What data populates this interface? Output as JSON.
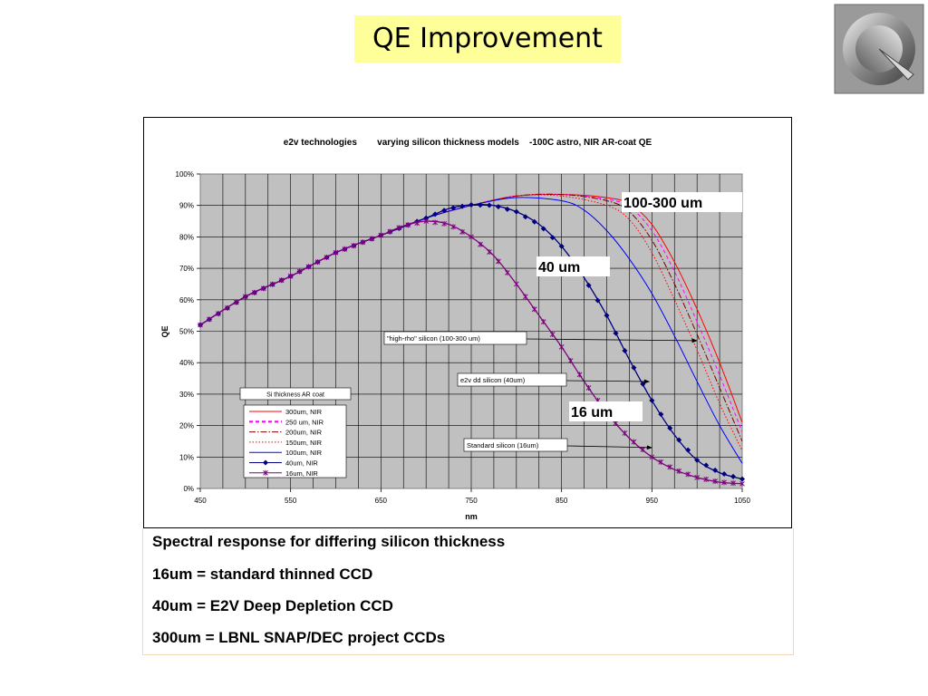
{
  "slide": {
    "title": "QE Improvement",
    "logo_icon": "chrome-circle-logo-icon",
    "notes": [
      "Spectral response for differing silicon thickness",
      "16um = standard thinned CCD",
      "40um = E2V Deep Depletion CCD",
      "300um = LBNL SNAP/DEC project CCDs"
    ]
  },
  "chart_data": {
    "type": "line",
    "title": "e2v technologies        varying silicon thickness models    -100C astro, NIR AR-coat QE",
    "xlabel": "nm",
    "ylabel": "QE",
    "xlim": [
      450,
      1050
    ],
    "ylim": [
      0,
      100
    ],
    "x_ticks": [
      450,
      550,
      650,
      750,
      850,
      950,
      1050
    ],
    "y_ticks": [
      "0%",
      "10%",
      "20%",
      "30%",
      "40%",
      "50%",
      "60%",
      "70%",
      "80%",
      "90%",
      "100%"
    ],
    "grid": true,
    "plot_background": "#c0c0c0",
    "legend": {
      "placement": "lower-left",
      "header": "Si thickness    AR coat",
      "entries": [
        "300um, NIR",
        "250 um, NIR",
        "200um, NIR",
        "150um, NIR",
        "100um, NIR",
        "40um, NIR",
        "16um, NIR"
      ]
    },
    "series": [
      {
        "name": "300um, NIR",
        "color": "#ff0000",
        "style": "solid",
        "x": [
          450,
          500,
          550,
          600,
          650,
          700,
          750,
          800,
          850,
          900,
          925,
          950,
          975,
          1000,
          1025,
          1050
        ],
        "y": [
          52,
          61,
          67.5,
          75,
          80.5,
          86,
          90,
          93,
          93.5,
          92.5,
          90.5,
          84,
          72,
          57,
          40,
          21
        ]
      },
      {
        "name": "250 um, NIR",
        "color": "#ff00ff",
        "style": "dash",
        "x": [
          450,
          500,
          550,
          600,
          650,
          700,
          750,
          800,
          850,
          900,
          925,
          950,
          975,
          1000,
          1025,
          1050
        ],
        "y": [
          52,
          61,
          67.5,
          75,
          80.5,
          86,
          90,
          93,
          93.5,
          92,
          89.5,
          82,
          69,
          53,
          36,
          18
        ]
      },
      {
        "name": "200um, NIR",
        "color": "#800000",
        "style": "dashdot",
        "x": [
          450,
          500,
          550,
          600,
          650,
          700,
          750,
          800,
          850,
          900,
          925,
          950,
          975,
          1000,
          1025,
          1050
        ],
        "y": [
          52,
          61,
          67.5,
          75,
          80.5,
          86,
          90,
          93,
          93.5,
          91.5,
          88,
          79,
          65,
          49,
          32,
          15
        ]
      },
      {
        "name": "150um, NIR",
        "color": "#ff0000",
        "style": "dot",
        "x": [
          450,
          500,
          550,
          600,
          650,
          700,
          750,
          800,
          850,
          900,
          925,
          950,
          975,
          1000,
          1025,
          1050
        ],
        "y": [
          52,
          61,
          67.5,
          75,
          80.5,
          86,
          90,
          93,
          93,
          90,
          85.5,
          75,
          60,
          44,
          27,
          12
        ]
      },
      {
        "name": "100um, NIR",
        "color": "#0000ff",
        "style": "solid",
        "x": [
          450,
          500,
          550,
          600,
          650,
          700,
          750,
          800,
          850,
          875,
          900,
          925,
          950,
          975,
          1000,
          1025,
          1050
        ],
        "y": [
          52,
          61,
          67.5,
          75,
          80.5,
          86,
          90,
          92.5,
          91.5,
          88.5,
          82,
          73,
          62,
          48.5,
          34,
          20,
          8
        ]
      },
      {
        "name": "40um, NIR",
        "color": "#000080",
        "style": "solid",
        "marker": "diamond",
        "x": [
          450,
          500,
          550,
          600,
          650,
          700,
          725,
          750,
          775,
          800,
          825,
          850,
          875,
          900,
          925,
          950,
          975,
          1000,
          1025,
          1050
        ],
        "y": [
          52,
          61,
          67.5,
          75,
          80.5,
          86,
          89,
          90.2,
          90,
          88,
          84,
          77,
          67,
          55,
          41,
          28,
          17,
          9,
          5,
          3
        ]
      },
      {
        "name": "16um, NIR",
        "color": "#800080",
        "style": "solid",
        "marker": "x",
        "x": [
          450,
          500,
          550,
          600,
          650,
          675,
          700,
          725,
          750,
          775,
          800,
          825,
          850,
          875,
          900,
          925,
          950,
          975,
          1000,
          1025,
          1050
        ],
        "y": [
          52,
          61,
          67.5,
          75,
          80.5,
          83.5,
          85,
          84,
          80,
          74,
          65,
          55,
          45,
          34,
          24,
          16,
          10,
          6,
          3.5,
          2,
          1.5
        ]
      }
    ],
    "annotations": [
      {
        "text": "\"high-rho\" silicon (100-300 um)",
        "box": true,
        "arrow_to": [
          1000,
          47
        ]
      },
      {
        "text": "e2v dd silicon (40um)",
        "box": true,
        "arrow_to": [
          947,
          34
        ]
      },
      {
        "text": "Standard silicon (16um)",
        "box": true,
        "arrow_to": [
          950,
          13
        ]
      }
    ],
    "callouts": [
      "100-300 um",
      "40 um",
      "16 um"
    ]
  }
}
